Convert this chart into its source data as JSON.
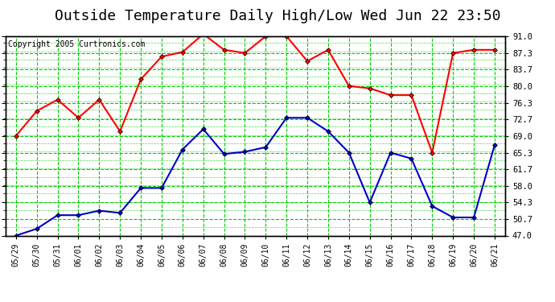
{
  "title": "Outside Temperature Daily High/Low Wed Jun 22 23:50",
  "copyright": "Copyright 2005 Curtronics.com",
  "x_labels": [
    "05/29",
    "05/30",
    "05/31",
    "06/01",
    "06/02",
    "06/03",
    "06/04",
    "06/05",
    "06/06",
    "06/07",
    "06/08",
    "06/09",
    "06/10",
    "06/11",
    "06/12",
    "06/13",
    "06/14",
    "06/15",
    "06/16",
    "06/17",
    "06/18",
    "06/19",
    "06/20",
    "06/21"
  ],
  "high_temps": [
    69.0,
    74.5,
    77.0,
    73.0,
    77.0,
    70.0,
    81.5,
    86.5,
    87.5,
    91.5,
    88.0,
    87.3,
    91.0,
    91.0,
    85.5,
    88.0,
    80.0,
    79.5,
    78.0,
    78.0,
    65.3,
    87.3,
    88.0,
    88.0
  ],
  "low_temps": [
    47.0,
    48.5,
    51.5,
    51.5,
    52.5,
    52.0,
    57.5,
    57.5,
    66.0,
    70.5,
    65.0,
    65.5,
    66.5,
    73.0,
    73.0,
    70.0,
    65.3,
    54.3,
    65.3,
    64.0,
    53.5,
    51.0,
    51.0,
    67.0
  ],
  "high_color": "#ff0000",
  "low_color": "#0000cc",
  "marker": "D",
  "marker_size": 3,
  "line_width": 1.5,
  "bg_color": "#ffffff",
  "plot_bg_color": "#ffffff",
  "grid_major_color": "#00cc00",
  "grid_minor_color": "#00cc00",
  "title_fontsize": 13,
  "ylim_min": 47.0,
  "ylim_max": 91.0,
  "yticks": [
    47.0,
    50.7,
    54.3,
    58.0,
    61.7,
    65.3,
    69.0,
    72.7,
    76.3,
    80.0,
    83.7,
    87.3,
    91.0
  ],
  "ylabel_fontsize": 7.5,
  "xlabel_fontsize": 7.0,
  "copyright_fontsize": 7.0
}
